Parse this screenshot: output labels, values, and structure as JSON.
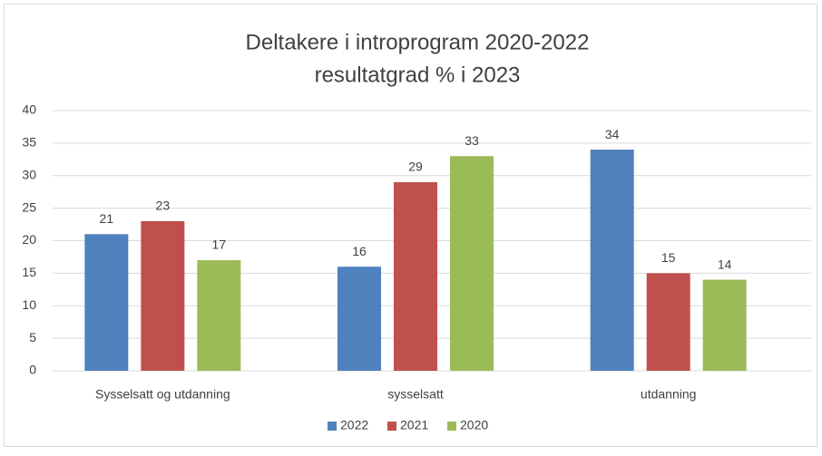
{
  "chart_data": {
    "type": "bar",
    "title": [
      "Deltakere i introprogram 2020-2022",
      "resultatgrad % i 2023"
    ],
    "categories": [
      "Sysselsatt og utdanning",
      "sysselsatt",
      "utdanning"
    ],
    "series": [
      {
        "name": "2022",
        "color": "#4f81bd",
        "values": [
          21,
          16,
          34
        ]
      },
      {
        "name": "2021",
        "color": "#c0504d",
        "values": [
          23,
          29,
          15
        ]
      },
      {
        "name": "2020",
        "color": "#9bbb59",
        "values": [
          17,
          33,
          14
        ]
      }
    ],
    "ylim": [
      0,
      40
    ],
    "yticks": [
      0,
      5,
      10,
      15,
      20,
      25,
      30,
      35,
      40
    ],
    "grid": true,
    "legend": "bottom"
  }
}
